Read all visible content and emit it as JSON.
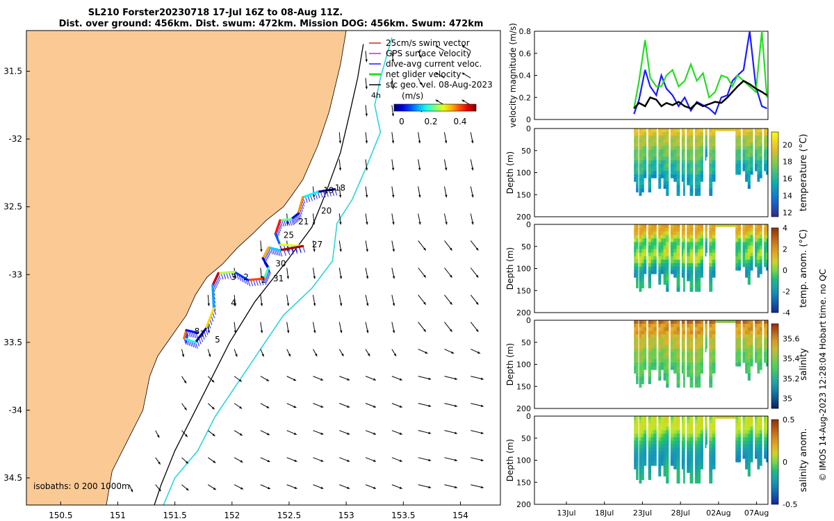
{
  "figure": {
    "title_line1": "SL210 Forster20230718 17-Jul 16Z to 08-Aug 11Z.",
    "title_line2": "Dist. over ground: 456km. Dist. swum: 472km. Mission DOG: 456km. Swum: 472km",
    "side_note": "© IMOS 14-Aug-2023 12:28:04 Hobart time. no QC"
  },
  "map": {
    "legend": [
      {
        "label": "25cm/s swim vector",
        "color": "#e0201a"
      },
      {
        "label": "GPS surface velocity",
        "color": "#d020d0"
      },
      {
        "label": "dive-avg current veloc.",
        "color": "#1a1aff"
      },
      {
        "label": "net glider velocity",
        "color": "#22dd22"
      },
      {
        "label": "sfc geo. vel. 08-Aug-2023",
        "color": "#000000"
      }
    ],
    "colorbar_unit": "(m/s)",
    "colorbar_ticks": [
      "0",
      "0.2",
      "0.4"
    ],
    "isobath_label": "isobaths: 0   200  1000m",
    "vector_label": "4h",
    "colors": {
      "land": "#fbc994",
      "sea": "#ffffff",
      "isobath_1000": "#2ad4dc"
    }
  },
  "chart_data": [
    {
      "type": "map",
      "xlim": [
        150.2,
        154.35
      ],
      "ylim": [
        -34.7,
        -31.2
      ],
      "xticks": [
        150.5,
        151,
        151.5,
        152,
        152.5,
        153,
        153.5,
        154
      ],
      "xtick_labels": [
        "150.5",
        "151",
        "151.5",
        "152",
        "152.5",
        "153",
        "153.5",
        "154"
      ],
      "yticks": [
        -31.5,
        -32,
        -32.5,
        -33,
        -33.5,
        -34,
        -34.5
      ],
      "ytick_labels": [
        "31.5",
        "-32",
        "32.5",
        "-33",
        "33.5",
        "-34",
        "34.5"
      ],
      "coastline": [
        [
          150.2,
          -31.2
        ],
        [
          153.0,
          -31.2
        ],
        [
          152.95,
          -31.45
        ],
        [
          152.85,
          -31.8
        ],
        [
          152.75,
          -32.05
        ],
        [
          152.62,
          -32.3
        ],
        [
          152.52,
          -32.42
        ],
        [
          152.45,
          -32.5
        ],
        [
          152.3,
          -32.6
        ],
        [
          152.18,
          -32.7
        ],
        [
          152.05,
          -32.8
        ],
        [
          151.92,
          -32.92
        ],
        [
          151.78,
          -33.02
        ],
        [
          151.68,
          -33.15
        ],
        [
          151.6,
          -33.3
        ],
        [
          151.45,
          -33.48
        ],
        [
          151.35,
          -33.6
        ],
        [
          151.28,
          -33.75
        ],
        [
          151.22,
          -34.0
        ],
        [
          151.1,
          -34.2
        ],
        [
          150.95,
          -34.45
        ],
        [
          150.9,
          -34.7
        ],
        [
          150.2,
          -34.7
        ]
      ],
      "isobath_200": [
        [
          153.15,
          -31.3
        ],
        [
          153.1,
          -31.55
        ],
        [
          153.02,
          -31.85
        ],
        [
          152.95,
          -32.1
        ],
        [
          152.82,
          -32.4
        ],
        [
          152.7,
          -32.65
        ],
        [
          152.48,
          -32.9
        ],
        [
          152.2,
          -33.2
        ],
        [
          151.98,
          -33.5
        ],
        [
          151.8,
          -33.8
        ],
        [
          151.65,
          -34.05
        ],
        [
          151.5,
          -34.3
        ],
        [
          151.38,
          -34.55
        ],
        [
          151.32,
          -34.7
        ]
      ],
      "isobath_1000": [
        [
          153.4,
          -31.25
        ],
        [
          153.3,
          -31.55
        ],
        [
          153.25,
          -31.75
        ],
        [
          153.3,
          -31.95
        ],
        [
          153.18,
          -32.2
        ],
        [
          153.05,
          -32.45
        ],
        [
          152.92,
          -32.62
        ],
        [
          152.88,
          -32.9
        ],
        [
          152.7,
          -33.1
        ],
        [
          152.45,
          -33.3
        ],
        [
          152.25,
          -33.55
        ],
        [
          152.05,
          -33.8
        ],
        [
          151.85,
          -34.05
        ],
        [
          151.7,
          -34.3
        ],
        [
          151.5,
          -34.5
        ],
        [
          151.4,
          -34.7
        ]
      ],
      "track": [
        [
          152.9,
          -32.37
        ],
        [
          152.75,
          -32.39
        ],
        [
          152.62,
          -32.43
        ],
        [
          152.58,
          -32.55
        ],
        [
          152.52,
          -32.59
        ],
        [
          152.42,
          -32.6
        ],
        [
          152.38,
          -32.7
        ],
        [
          152.42,
          -32.78
        ],
        [
          152.62,
          -32.79
        ],
        [
          152.42,
          -32.82
        ],
        [
          152.32,
          -32.8
        ],
        [
          152.27,
          -32.88
        ],
        [
          152.32,
          -32.95
        ],
        [
          152.28,
          -33.03
        ],
        [
          152.14,
          -33.04
        ],
        [
          152.02,
          -32.98
        ],
        [
          151.88,
          -32.99
        ],
        [
          151.83,
          -33.08
        ],
        [
          151.84,
          -33.25
        ],
        [
          151.77,
          -33.4
        ],
        [
          151.68,
          -33.5
        ],
        [
          151.58,
          -33.47
        ],
        [
          151.6,
          -33.41
        ],
        [
          151.7,
          -33.43
        ]
      ],
      "waypoint_labels": [
        {
          "lon": 152.25,
          "lat": -33.06,
          "text": "1"
        },
        {
          "lon": 152.1,
          "lat": -33.04,
          "text": "2"
        },
        {
          "lon": 151.99,
          "lat": -33.04,
          "text": "3"
        },
        {
          "lon": 151.99,
          "lat": -33.23,
          "text": "4"
        },
        {
          "lon": 151.85,
          "lat": -33.5,
          "text": "5"
        },
        {
          "lon": 151.72,
          "lat": -33.46,
          "text": "7"
        },
        {
          "lon": 151.67,
          "lat": -33.44,
          "text": "8"
        },
        {
          "lon": 152.9,
          "lat": -32.38,
          "text": "18"
        },
        {
          "lon": 152.8,
          "lat": -32.4,
          "text": "19"
        },
        {
          "lon": 152.78,
          "lat": -32.55,
          "text": "20"
        },
        {
          "lon": 152.58,
          "lat": -32.63,
          "text": "21"
        },
        {
          "lon": 152.45,
          "lat": -32.73,
          "text": "25"
        },
        {
          "lon": 152.7,
          "lat": -32.8,
          "text": "27"
        },
        {
          "lon": 152.38,
          "lat": -32.94,
          "text": "30"
        },
        {
          "lon": 152.36,
          "lat": -33.05,
          "text": "31"
        }
      ]
    },
    {
      "type": "line",
      "ylabel": "velocity magnitude (m/s)",
      "ylim": [
        0,
        0.8
      ],
      "yticks": [
        0,
        0.2,
        0.4,
        0.6,
        0.8
      ],
      "ytick_labels": [
        "0",
        "0.2",
        "0.4",
        "0.6",
        "0.8"
      ],
      "xlim": [
        8.0,
        31.0
      ],
      "series": [
        {
          "name": "dive-avg current veloc.",
          "color": "#1a1aff",
          "x": [
            17.8,
            18.3,
            18.9,
            19.4,
            20.0,
            20.5,
            21.0,
            21.6,
            22.2,
            22.8,
            23.4,
            24.0,
            24.6,
            25.2,
            25.8,
            26.4,
            27.0,
            27.5,
            28.0,
            28.6,
            29.2,
            29.8,
            30.4,
            30.9
          ],
          "values": [
            0.05,
            0.18,
            0.45,
            0.3,
            0.22,
            0.4,
            0.28,
            0.22,
            0.12,
            0.2,
            0.08,
            0.16,
            0.13,
            0.1,
            0.05,
            0.2,
            0.22,
            0.35,
            0.4,
            0.45,
            0.8,
            0.3,
            0.12,
            0.1
          ]
        },
        {
          "name": "net glider velocity",
          "color": "#22dd22",
          "x": [
            17.8,
            18.3,
            18.9,
            19.4,
            20.0,
            20.5,
            21.0,
            21.6,
            22.2,
            22.8,
            23.4,
            24.0,
            24.6,
            25.2,
            25.8,
            26.4,
            27.0,
            27.5,
            28.0,
            28.6,
            29.2,
            29.8,
            30.4,
            30.9
          ],
          "values": [
            0.1,
            0.35,
            0.72,
            0.38,
            0.3,
            0.3,
            0.4,
            0.45,
            0.3,
            0.35,
            0.5,
            0.35,
            0.42,
            0.2,
            0.25,
            0.4,
            0.38,
            0.3,
            0.4,
            0.35,
            0.3,
            0.25,
            0.8,
            0.2
          ]
        },
        {
          "name": "sfc geo. vel.",
          "color": "#000000",
          "x": [
            17.8,
            18.3,
            18.9,
            19.4,
            20.0,
            20.5,
            21.0,
            21.6,
            22.2,
            22.8,
            23.4,
            24.0,
            24.6,
            25.2,
            25.8,
            26.4,
            27.0,
            27.5,
            28.0,
            28.6,
            29.2,
            29.8,
            30.4,
            30.9
          ],
          "values": [
            0.1,
            0.15,
            0.12,
            0.2,
            0.18,
            0.12,
            0.15,
            0.13,
            0.16,
            0.12,
            0.1,
            0.15,
            0.12,
            0.14,
            0.16,
            0.15,
            0.2,
            0.25,
            0.3,
            0.35,
            0.32,
            0.28,
            0.25,
            0.22
          ]
        }
      ]
    },
    {
      "type": "heatmap",
      "variable": "temperature",
      "ylabel": "Depth (m)",
      "ylim": [
        0,
        200
      ],
      "yticks": [
        0,
        50,
        100,
        150,
        200
      ],
      "ytick_labels": [
        "0",
        "50",
        "100",
        "150",
        "200"
      ],
      "colorbar_label": "temperature (°C)",
      "colorbar_ticks": [
        "12",
        "14",
        "16",
        "18",
        "20"
      ],
      "clim": [
        11.5,
        21.5
      ]
    },
    {
      "type": "heatmap",
      "variable": "temp. anom.",
      "ylabel": "Depth (m)",
      "ylim": [
        0,
        200
      ],
      "yticks": [
        0,
        50,
        100,
        150,
        200
      ],
      "ytick_labels": [
        "0",
        "50",
        "100",
        "150",
        "200"
      ],
      "colorbar_label": "temp. anom. (°C)",
      "colorbar_ticks": [
        "4",
        "2",
        "0",
        "-2",
        "-4"
      ],
      "clim": [
        -4,
        4
      ]
    },
    {
      "type": "heatmap",
      "variable": "salinity",
      "ylabel": "Depth (m)",
      "ylim": [
        0,
        200
      ],
      "yticks": [
        0,
        50,
        100,
        150,
        200
      ],
      "ytick_labels": [
        "0",
        "50",
        "100",
        "150",
        "200"
      ],
      "colorbar_label": "salinity",
      "colorbar_ticks": [
        "35.6",
        "35.4",
        "35.2",
        "35"
      ],
      "clim": [
        34.9,
        35.75
      ]
    },
    {
      "type": "heatmap",
      "variable": "salinity anom.",
      "ylabel": "Depth (m)",
      "ylim": [
        0,
        200
      ],
      "yticks": [
        0,
        50,
        100,
        150,
        200
      ],
      "ytick_labels": [
        "0",
        "50",
        "100",
        "150",
        "200"
      ],
      "colorbar_label": "salinity anom.",
      "colorbar_ticks": [
        "0.5",
        "0",
        "-0.5"
      ],
      "clim": [
        -0.5,
        0.5
      ],
      "xtick_labels": [
        "13Jul",
        "18Jul",
        "23Jul",
        "28Jul",
        "02Aug",
        "07Aug"
      ],
      "xtick_values": [
        13,
        18,
        23,
        28,
        33,
        38
      ]
    }
  ]
}
